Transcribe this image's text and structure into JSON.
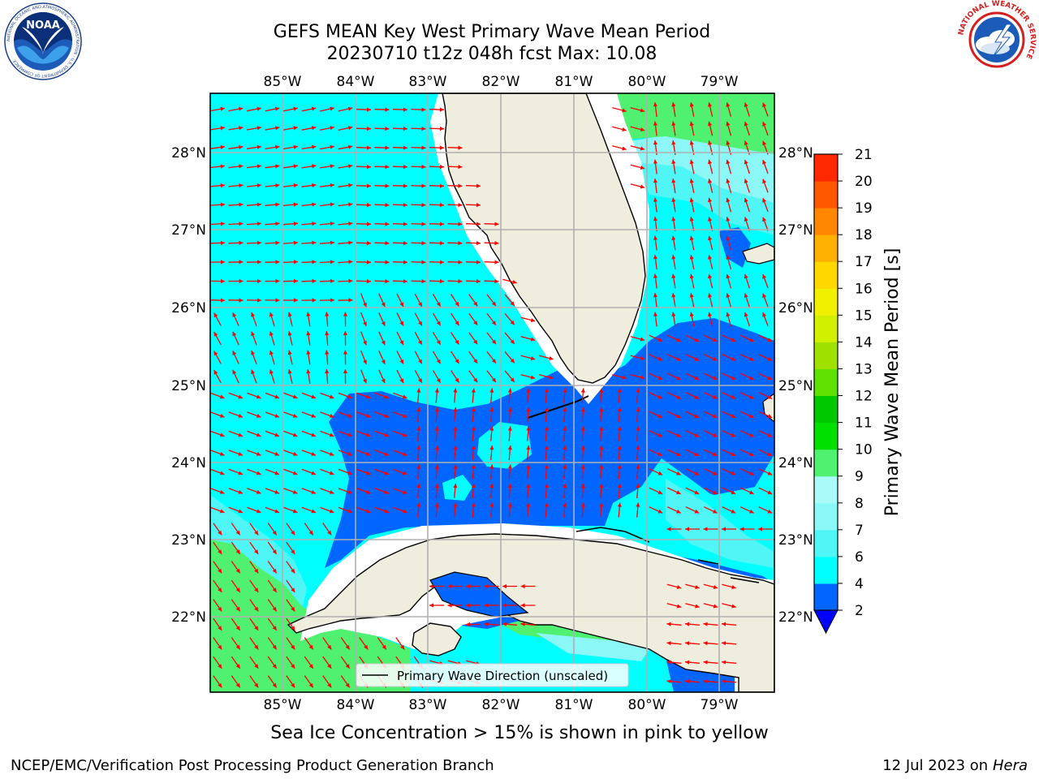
{
  "title_line1": "GEFS MEAN Key West Primary Wave Mean Period",
  "title_line2": "20230710 t12z 048h fcst   Max: 10.08",
  "logos": {
    "left_icon": "noaa-logo",
    "left_text": "NOAA",
    "left_ring_text": "NATIONAL OCEANIC AND ATMOSPHERIC ADMINISTRATION · U.S. DEPARTMENT OF COMMERCE",
    "right_icon": "nws-logo",
    "right_ring_text": "NATIONAL WEATHER SERVICE"
  },
  "map": {
    "projection": "plate-carree",
    "lon_range": [
      -86.0,
      -78.3
    ],
    "lat_range": [
      21.0,
      28.8
    ],
    "lon_ticks": [
      "85°W",
      "84°W",
      "83°W",
      "82°W",
      "81°W",
      "80°W",
      "79°W"
    ],
    "lat_ticks": [
      "28°N",
      "27°N",
      "26°N",
      "25°N",
      "24°N",
      "23°N",
      "22°N"
    ],
    "grid": true,
    "land_color": "#efedde",
    "arrow_color": "#ff0000"
  },
  "legend": {
    "label": "Primary Wave Direction (unscaled)",
    "placement": "bottom-center"
  },
  "colorbar": {
    "label": "Primary Wave Mean Period [s]",
    "ticks": [
      "2",
      "4",
      "6",
      "7",
      "8",
      "9",
      "10",
      "11",
      "12",
      "13",
      "14",
      "15",
      "16",
      "17",
      "18",
      "19",
      "20",
      "21"
    ],
    "colors": [
      "#0066ff",
      "#00ffff",
      "#50f5f5",
      "#8cf7f7",
      "#aafafa",
      "#50f070",
      "#00e000",
      "#00c800",
      "#60e000",
      "#a0e000",
      "#d0f000",
      "#f0f000",
      "#ffd800",
      "#ffb000",
      "#ff8800",
      "#ff5800",
      "#ff2800",
      "#ff0000"
    ],
    "extend_color": "#0000ff"
  },
  "footer": {
    "note": "Sea Ice Concentration > 15% is shown in pink to yellow",
    "left": "NCEP/EMC/Verification Post Processing Product Generation Branch",
    "right_date": "12 Jul 2023 on ",
    "right_machine": "Hera"
  }
}
